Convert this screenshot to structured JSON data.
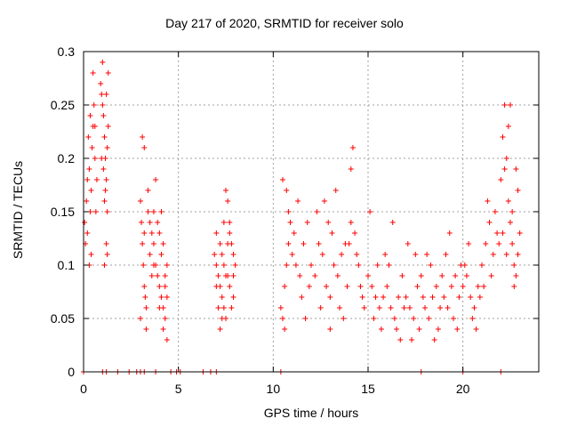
{
  "chart_data": {
    "type": "scatter",
    "title": "Day 217 of 2020, SRMTID for receiver solo",
    "xlabel": "GPS time / hours",
    "ylabel": "SRMTID / TECUs",
    "xlim": [
      0,
      24
    ],
    "ylim": [
      0,
      0.3
    ],
    "xticks": [
      0,
      5,
      10,
      15,
      20
    ],
    "yticks": [
      0,
      0.05,
      0.1,
      0.15,
      0.2,
      0.25,
      0.3
    ],
    "xtick_labels": [
      "0",
      "5",
      "10",
      "15",
      "20"
    ],
    "ytick_labels": [
      "0",
      "0.05",
      "0.1",
      "0.15",
      "0.2",
      "0.25",
      "0.3"
    ],
    "grid": true,
    "marker": "+",
    "color": "#ff0000",
    "series": [
      {
        "name": "SRMTID",
        "points": [
          [
            0.05,
            0.14
          ],
          [
            0.1,
            0.12
          ],
          [
            0.15,
            0.16
          ],
          [
            0.2,
            0.18
          ],
          [
            0.25,
            0.22
          ],
          [
            0.3,
            0.19
          ],
          [
            0.35,
            0.24
          ],
          [
            0.4,
            0.17
          ],
          [
            0.45,
            0.21
          ],
          [
            0.5,
            0.23
          ],
          [
            0.55,
            0.25
          ],
          [
            0.6,
            0.2
          ],
          [
            0.65,
            0.15
          ],
          [
            0.7,
            0.18
          ],
          [
            0.2,
            0.13
          ],
          [
            0.3,
            0.1
          ],
          [
            0.4,
            0.11
          ],
          [
            0.5,
            0.28
          ],
          [
            0.6,
            0.23
          ],
          [
            0.35,
            0.15
          ],
          [
            0.9,
            0.27
          ],
          [
            0.95,
            0.26
          ],
          [
            1.0,
            0.29
          ],
          [
            1.05,
            0.24
          ],
          [
            1.1,
            0.22
          ],
          [
            1.15,
            0.2
          ],
          [
            1.2,
            0.18
          ],
          [
            1.25,
            0.21
          ],
          [
            1.3,
            0.23
          ],
          [
            1.0,
            0.25
          ],
          [
            1.05,
            0.19
          ],
          [
            1.1,
            0.16
          ],
          [
            1.15,
            0.17
          ],
          [
            1.2,
            0.12
          ],
          [
            1.25,
            0.11
          ],
          [
            1.1,
            0.1
          ],
          [
            1.3,
            0.28
          ],
          [
            1.2,
            0.26
          ],
          [
            0.95,
            0.2
          ],
          [
            1.25,
            0.15
          ],
          [
            3.0,
            0.16
          ],
          [
            3.05,
            0.14
          ],
          [
            3.1,
            0.12
          ],
          [
            3.15,
            0.1
          ],
          [
            3.2,
            0.08
          ],
          [
            3.25,
            0.07
          ],
          [
            3.3,
            0.06
          ],
          [
            3.1,
            0.22
          ],
          [
            3.2,
            0.21
          ],
          [
            3.0,
            0.05
          ],
          [
            3.4,
            0.15
          ],
          [
            3.5,
            0.14
          ],
          [
            3.6,
            0.13
          ],
          [
            3.7,
            0.15
          ],
          [
            3.5,
            0.11
          ],
          [
            3.6,
            0.09
          ],
          [
            3.3,
            0.04
          ],
          [
            3.4,
            0.17
          ],
          [
            3.7,
            0.12
          ],
          [
            3.2,
            0.13
          ],
          [
            3.8,
            0.1
          ],
          [
            3.9,
            0.09
          ],
          [
            4.0,
            0.08
          ],
          [
            4.1,
            0.07
          ],
          [
            4.2,
            0.06
          ],
          [
            4.3,
            0.05
          ],
          [
            4.0,
            0.13
          ],
          [
            4.1,
            0.11
          ],
          [
            4.2,
            0.12
          ],
          [
            4.4,
            0.1
          ],
          [
            4.3,
            0.09
          ],
          [
            4.4,
            0.03
          ],
          [
            3.9,
            0.14
          ],
          [
            4.0,
            0.06
          ],
          [
            4.3,
            0.08
          ],
          [
            3.8,
            0.18
          ],
          [
            4.2,
            0.04
          ],
          [
            4.1,
            0.15
          ],
          [
            3.7,
            0.1
          ],
          [
            4.4,
            0.07
          ],
          [
            6.9,
            0.11
          ],
          [
            7.0,
            0.1
          ],
          [
            7.1,
            0.09
          ],
          [
            7.2,
            0.08
          ],
          [
            7.3,
            0.07
          ],
          [
            7.4,
            0.06
          ],
          [
            7.0,
            0.13
          ],
          [
            7.2,
            0.12
          ],
          [
            7.4,
            0.1
          ],
          [
            7.6,
            0.09
          ],
          [
            7.5,
            0.17
          ],
          [
            7.6,
            0.16
          ],
          [
            7.7,
            0.14
          ],
          [
            7.8,
            0.12
          ],
          [
            7.9,
            0.11
          ],
          [
            7.5,
            0.05
          ],
          [
            7.7,
            0.08
          ],
          [
            7.9,
            0.07
          ],
          [
            7.1,
            0.06
          ],
          [
            7.3,
            0.05
          ],
          [
            7.8,
            0.06
          ],
          [
            7.6,
            0.12
          ],
          [
            7.4,
            0.14
          ],
          [
            7.2,
            0.04
          ],
          [
            7.9,
            0.09
          ],
          [
            8.0,
            0.1
          ],
          [
            7.0,
            0.08
          ],
          [
            7.7,
            0.13
          ],
          [
            7.3,
            0.11
          ],
          [
            7.5,
            0.09
          ],
          [
            10.4,
            0.06
          ],
          [
            10.5,
            0.05
          ],
          [
            10.6,
            0.08
          ],
          [
            10.7,
            0.1
          ],
          [
            10.8,
            0.12
          ],
          [
            10.9,
            0.14
          ],
          [
            10.5,
            0.18
          ],
          [
            10.7,
            0.17
          ],
          [
            10.8,
            0.15
          ],
          [
            10.6,
            0.04
          ],
          [
            11.0,
            0.11
          ],
          [
            11.2,
            0.1
          ],
          [
            11.4,
            0.09
          ],
          [
            11.6,
            0.12
          ],
          [
            11.8,
            0.14
          ],
          [
            11.3,
            0.16
          ],
          [
            11.5,
            0.07
          ],
          [
            11.7,
            0.05
          ],
          [
            11.1,
            0.13
          ],
          [
            11.9,
            0.08
          ],
          [
            12.0,
            0.1
          ],
          [
            12.2,
            0.09
          ],
          [
            12.4,
            0.12
          ],
          [
            12.6,
            0.11
          ],
          [
            12.8,
            0.08
          ],
          [
            13.0,
            0.07
          ],
          [
            12.3,
            0.15
          ],
          [
            12.7,
            0.16
          ],
          [
            12.5,
            0.06
          ],
          [
            12.9,
            0.14
          ],
          [
            13.2,
            0.1
          ],
          [
            13.4,
            0.09
          ],
          [
            13.6,
            0.11
          ],
          [
            13.8,
            0.12
          ],
          [
            13.3,
            0.17
          ],
          [
            13.5,
            0.06
          ],
          [
            13.7,
            0.05
          ],
          [
            13.1,
            0.13
          ],
          [
            13.9,
            0.08
          ],
          [
            13.0,
            0.04
          ],
          [
            14.0,
            0.12
          ],
          [
            14.1,
            0.14
          ],
          [
            14.2,
            0.21
          ],
          [
            14.3,
            0.13
          ],
          [
            14.4,
            0.11
          ],
          [
            14.5,
            0.1
          ],
          [
            14.1,
            0.19
          ],
          [
            14.6,
            0.08
          ],
          [
            14.7,
            0.07
          ],
          [
            14.8,
            0.06
          ],
          [
            15.0,
            0.09
          ],
          [
            15.2,
            0.08
          ],
          [
            15.4,
            0.07
          ],
          [
            15.6,
            0.06
          ],
          [
            15.8,
            0.07
          ],
          [
            15.1,
            0.15
          ],
          [
            15.3,
            0.05
          ],
          [
            15.5,
            0.1
          ],
          [
            15.7,
            0.04
          ],
          [
            15.9,
            0.11
          ],
          [
            16.0,
            0.08
          ],
          [
            16.2,
            0.06
          ],
          [
            16.4,
            0.05
          ],
          [
            16.6,
            0.07
          ],
          [
            16.8,
            0.09
          ],
          [
            16.3,
            0.14
          ],
          [
            16.5,
            0.04
          ],
          [
            16.7,
            0.03
          ],
          [
            16.1,
            0.1
          ],
          [
            16.9,
            0.06
          ],
          [
            17.0,
            0.07
          ],
          [
            17.2,
            0.06
          ],
          [
            17.4,
            0.05
          ],
          [
            17.6,
            0.08
          ],
          [
            17.8,
            0.09
          ],
          [
            17.3,
            0.03
          ],
          [
            17.5,
            0.11
          ],
          [
            17.7,
            0.04
          ],
          [
            17.1,
            0.12
          ],
          [
            17.9,
            0.07
          ],
          [
            18.0,
            0.06
          ],
          [
            18.2,
            0.05
          ],
          [
            18.4,
            0.07
          ],
          [
            18.6,
            0.08
          ],
          [
            18.8,
            0.06
          ],
          [
            18.3,
            0.1
          ],
          [
            18.5,
            0.03
          ],
          [
            18.7,
            0.04
          ],
          [
            18.1,
            0.11
          ],
          [
            18.9,
            0.09
          ],
          [
            19.0,
            0.07
          ],
          [
            19.2,
            0.06
          ],
          [
            19.4,
            0.08
          ],
          [
            19.6,
            0.09
          ],
          [
            19.8,
            0.07
          ],
          [
            19.3,
            0.13
          ],
          [
            19.5,
            0.05
          ],
          [
            19.7,
            0.04
          ],
          [
            19.1,
            0.11
          ],
          [
            19.9,
            0.1
          ],
          [
            20.0,
            0.08
          ],
          [
            20.2,
            0.09
          ],
          [
            20.4,
            0.07
          ],
          [
            20.6,
            0.06
          ],
          [
            20.8,
            0.08
          ],
          [
            20.3,
            0.12
          ],
          [
            20.5,
            0.05
          ],
          [
            20.7,
            0.04
          ],
          [
            20.1,
            0.1
          ],
          [
            20.9,
            0.07
          ],
          [
            21.0,
            0.1
          ],
          [
            21.2,
            0.12
          ],
          [
            21.4,
            0.14
          ],
          [
            21.6,
            0.11
          ],
          [
            21.8,
            0.13
          ],
          [
            21.3,
            0.16
          ],
          [
            21.5,
            0.09
          ],
          [
            21.7,
            0.15
          ],
          [
            21.1,
            0.08
          ],
          [
            21.9,
            0.12
          ],
          [
            22.0,
            0.18
          ],
          [
            22.1,
            0.22
          ],
          [
            22.2,
            0.25
          ],
          [
            22.3,
            0.2
          ],
          [
            22.4,
            0.16
          ],
          [
            22.5,
            0.14
          ],
          [
            22.6,
            0.12
          ],
          [
            22.7,
            0.1
          ],
          [
            22.8,
            0.09
          ],
          [
            22.9,
            0.17
          ],
          [
            22.2,
            0.19
          ],
          [
            22.4,
            0.23
          ],
          [
            22.6,
            0.15
          ],
          [
            22.8,
            0.19
          ],
          [
            23.0,
            0.13
          ],
          [
            22.5,
            0.25
          ],
          [
            22.7,
            0.08
          ],
          [
            22.3,
            0.11
          ],
          [
            22.1,
            0.13
          ],
          [
            22.9,
            0.11
          ],
          [
            0.0,
            0.0
          ],
          [
            1.0,
            0.0
          ],
          [
            1.2,
            0.0
          ],
          [
            1.8,
            0.0
          ],
          [
            2.4,
            0.0
          ],
          [
            2.8,
            0.0
          ],
          [
            3.0,
            0.0
          ],
          [
            3.2,
            0.0
          ],
          [
            3.8,
            0.0
          ],
          [
            4.6,
            0.0
          ],
          [
            4.9,
            0.0
          ],
          [
            5.1,
            0.0
          ],
          [
            6.3,
            0.0
          ],
          [
            6.7,
            0.0
          ],
          [
            7.0,
            0.0
          ],
          [
            10.4,
            0.0
          ],
          [
            17.8,
            0.0
          ],
          [
            20.0,
            0.0
          ],
          [
            22.0,
            0.0
          ]
        ]
      }
    ]
  }
}
